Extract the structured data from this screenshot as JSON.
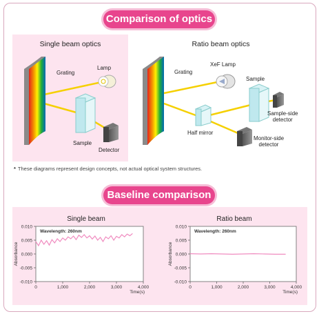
{
  "section1": {
    "title": "Comparison of optics"
  },
  "single_optics": {
    "title": "Single beam optics",
    "labels": {
      "grating": "Grating",
      "lamp": "Lamp",
      "sample": "Sample",
      "detector": "Detector"
    }
  },
  "ratio_optics": {
    "title": "Ratio beam optics",
    "labels": {
      "grating": "Grating",
      "lamp": "XeF Lamp",
      "sample": "Sample",
      "half_mirror": "Half mirror",
      "sample_detector_1": "Sample-side",
      "sample_detector_2": "detector",
      "monitor_detector_1": "Monitor-side",
      "monitor_detector_2": "detector"
    }
  },
  "note": {
    "star": "*",
    "text": "These diagrams represent design concepts, not actual optical system structures."
  },
  "section2": {
    "title": "Baseline comparison"
  },
  "colors": {
    "accent": "#e8458d",
    "panel": "#fde4ef",
    "beam": "#f5d000",
    "trace": "#f08cc0"
  },
  "chart_data": [
    {
      "type": "line",
      "title": "Single beam",
      "annotation": "Wavelength: 260nm",
      "ylabel": "Absorbance",
      "xlabel": "Time(s)",
      "xlim": [
        0,
        4000
      ],
      "ylim": [
        -0.01,
        0.01
      ],
      "xticks": [
        "0",
        "1,000",
        "2,000",
        "3,000",
        "4,000"
      ],
      "yticks": [
        "0.010",
        "0.005",
        "0.000",
        "-0.005",
        "-0.010"
      ],
      "series": [
        {
          "x": [
            0,
            100,
            200,
            300,
            400,
            500,
            600,
            700,
            800,
            900,
            1000,
            1100,
            1200,
            1300,
            1400,
            1500,
            1600,
            1700,
            1800,
            1900,
            2000,
            2100,
            2200,
            2300,
            2400,
            2500,
            2600,
            2700,
            2800,
            2900,
            3000,
            3100,
            3200,
            3300,
            3400,
            3500,
            3600
          ],
          "values": [
            0.0045,
            0.003,
            0.005,
            0.0035,
            0.0048,
            0.0032,
            0.0052,
            0.004,
            0.0055,
            0.0045,
            0.0058,
            0.005,
            0.0062,
            0.0055,
            0.0065,
            0.0052,
            0.0068,
            0.006,
            0.007,
            0.0058,
            0.0066,
            0.0054,
            0.0065,
            0.005,
            0.006,
            0.0045,
            0.0062,
            0.0055,
            0.0066,
            0.005,
            0.0064,
            0.0058,
            0.007,
            0.0062,
            0.0072,
            0.0066,
            0.0074
          ]
        }
      ]
    },
    {
      "type": "line",
      "title": "Ratio beam",
      "annotation": "Wavelength: 260nm",
      "ylabel": "Absorbance",
      "xlabel": "Time(s)",
      "xlim": [
        0,
        4000
      ],
      "ylim": [
        -0.01,
        0.01
      ],
      "xticks": [
        "0",
        "1,000",
        "2,000",
        "3,000",
        "4,000"
      ],
      "yticks": [
        "0.010",
        "0.005",
        "0.000",
        "-0.005",
        "-0.010"
      ],
      "series": [
        {
          "x": [
            0,
            400,
            800,
            1200,
            1600,
            2000,
            2400,
            2800,
            3200,
            3600
          ],
          "values": [
            0.0001,
            0.0,
            0.0001,
            0.0,
            -0.0001,
            0.0,
            0.0001,
            0.0,
            -0.0001,
            -0.0001
          ]
        }
      ]
    }
  ]
}
